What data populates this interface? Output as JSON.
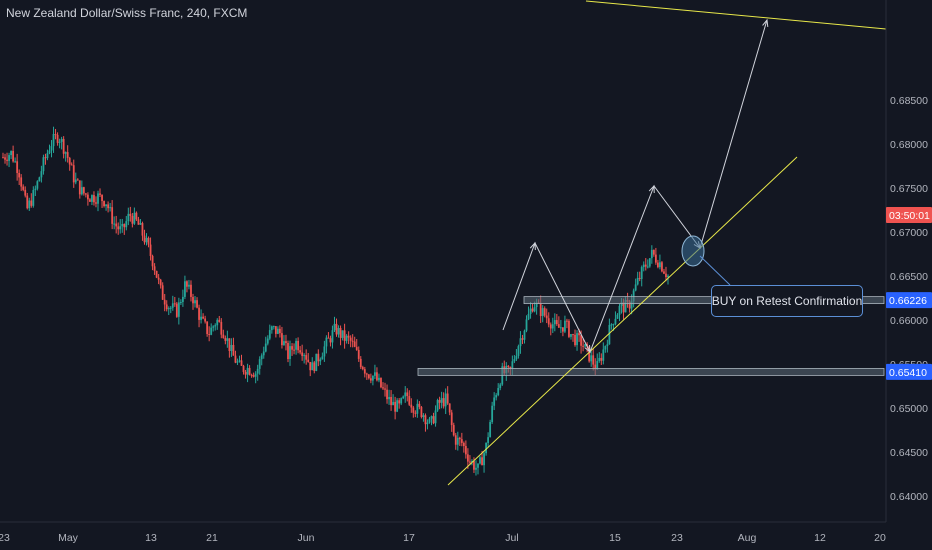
{
  "header": {
    "symbol_title": "New Zealand Dollar/Swiss Franc, 240, FXCM"
  },
  "annotation": {
    "callout_text": "BUY on Retest Confirmation"
  },
  "colors": {
    "background": "#131722",
    "bull": "#26a69a",
    "bear": "#ef5350",
    "trendline": "#e8e84a",
    "path_arrows": "#d1d4dc",
    "zone": "#5d6b78",
    "level_label": "#2962ff",
    "countdown_label": "#ef5350"
  },
  "price_axis": {
    "ticks": [
      "0.68500",
      "0.68000",
      "0.67500",
      "0.67000",
      "0.66500",
      "0.66000",
      "0.65500",
      "0.65000",
      "0.64500",
      "0.64000"
    ],
    "current_label": "03:50:01",
    "level_labels": [
      "0.66226",
      "0.65410"
    ]
  },
  "time_axis": {
    "labels": [
      "23",
      "May",
      "13",
      "21",
      "Jun",
      "17",
      "Jul",
      "15",
      "23",
      "Aug",
      "12",
      "20"
    ]
  },
  "chart_data": {
    "type": "candlestick",
    "title": "New Zealand Dollar/Swiss Franc, 240, FXCM",
    "ylim": [
      0.6385,
      0.686
    ],
    "close_path": [
      0.6785,
      0.679,
      0.677,
      0.6725,
      0.6745,
      0.6775,
      0.68,
      0.681,
      0.679,
      0.676,
      0.6745,
      0.674,
      0.674,
      0.6735,
      0.671,
      0.67,
      0.672,
      0.671,
      0.669,
      0.6665,
      0.663,
      0.6615,
      0.661,
      0.664,
      0.6625,
      0.66,
      0.6585,
      0.66,
      0.6585,
      0.656,
      0.6545,
      0.6545,
      0.654,
      0.657,
      0.659,
      0.6585,
      0.656,
      0.6575,
      0.6565,
      0.6545,
      0.656,
      0.6575,
      0.659,
      0.658,
      0.6575,
      0.6555,
      0.654,
      0.6535,
      0.652,
      0.6505,
      0.65,
      0.6515,
      0.65,
      0.6495,
      0.648,
      0.6505,
      0.651,
      0.6465,
      0.646,
      0.644,
      0.643,
      0.6455,
      0.651,
      0.654,
      0.654,
      0.657,
      0.6595,
      0.662,
      0.661,
      0.66,
      0.659,
      0.6595,
      0.658,
      0.6575,
      0.656,
      0.6545,
      0.657,
      0.66,
      0.6615,
      0.6615,
      0.664,
      0.666,
      0.6675,
      0.6665,
      0.665
    ],
    "trendline_support": {
      "from": [
        "Jun 21",
        0.6412
      ],
      "to": [
        "Jul 31",
        0.671
      ]
    },
    "trendline_resistance": {
      "from": [
        "Jul 19",
        0.6868
      ],
      "to": [
        "Aug 20",
        0.6827
      ]
    },
    "zones": [
      0.66226,
      0.6541
    ],
    "projection_path": [
      [
        "Jul 3",
        0.6633
      ],
      [
        "Jul 11",
        0.6532
      ],
      [
        "Jul 19",
        0.6683
      ],
      [
        "Jul 24",
        0.6619
      ],
      [
        "Aug 2",
        0.6835
      ]
    ],
    "grid": false,
    "legend": "none"
  }
}
